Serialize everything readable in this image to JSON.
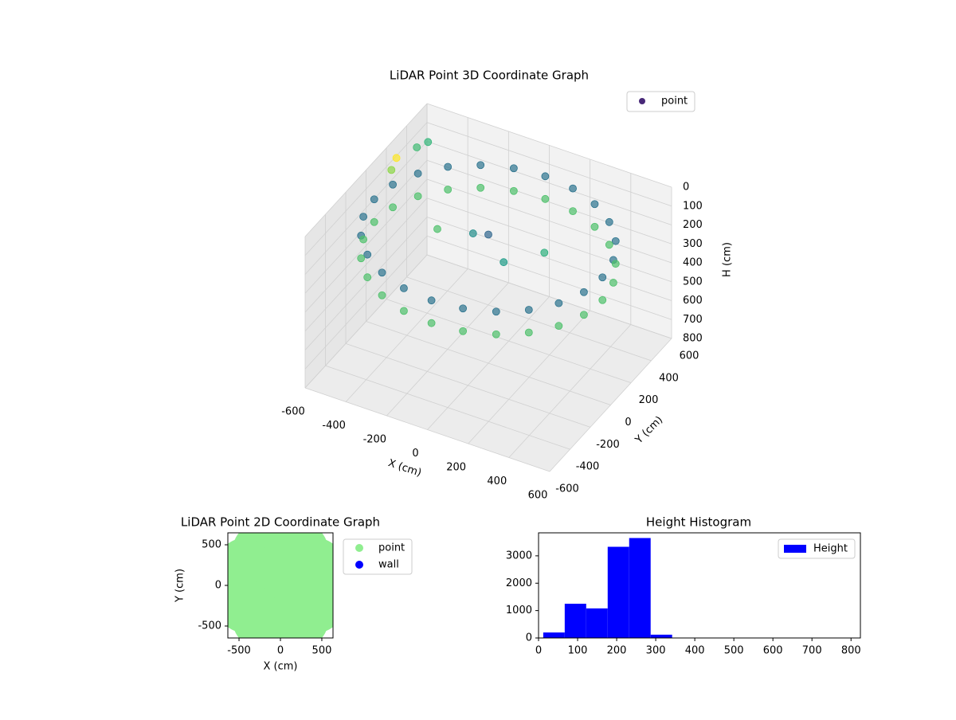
{
  "chart_data": [
    {
      "type": "scatter3d",
      "title": "LiDAR Point 3D Coordinate Graph",
      "xlabel": "X (cm)",
      "ylabel": "Y (cm)",
      "zlabel": "H (cm)",
      "xlim": [
        -600,
        600
      ],
      "ylim": [
        -600,
        600
      ],
      "zlim": [
        0,
        800
      ],
      "zinverted": true,
      "xticks": [
        -600,
        -400,
        -200,
        0,
        200,
        400,
        600
      ],
      "yticks": [
        -600,
        -400,
        -200,
        0,
        200,
        400,
        600
      ],
      "zticks": [
        0,
        100,
        200,
        300,
        400,
        500,
        600,
        700,
        800
      ],
      "colormap": "viridis",
      "legend": "upper right",
      "grid": true,
      "series": [
        {
          "name": "point",
          "color": "#482878",
          "x": [
            560,
            541,
            485,
            396,
            280,
            145,
            0,
            -145,
            -280,
            -396,
            -485,
            -541,
            -560,
            -541,
            -485,
            -396,
            -280,
            -145,
            0,
            145,
            280,
            396,
            485,
            541,
            560,
            541,
            485,
            396,
            280,
            145,
            0,
            -145,
            -280,
            -396,
            -485,
            -541,
            -560,
            -541,
            -485,
            -396,
            -280,
            -145,
            0,
            145,
            280,
            396,
            485,
            541,
            -100,
            0,
            100,
            -300,
            200,
            -650,
            -620,
            -700,
            -800
          ],
          "y": [
            0,
            145,
            280,
            396,
            485,
            541,
            560,
            541,
            485,
            396,
            280,
            145,
            0,
            -145,
            -280,
            -396,
            -485,
            -541,
            -560,
            -541,
            -485,
            -396,
            -280,
            -145,
            0,
            145,
            280,
            396,
            485,
            541,
            560,
            541,
            485,
            396,
            280,
            145,
            0,
            -145,
            -280,
            -396,
            -485,
            -541,
            -560,
            -541,
            -485,
            -396,
            -280,
            -145,
            50,
            0,
            -50,
            100,
            150,
            600,
            650,
            450,
            700
          ],
          "z": [
            140,
            140,
            140,
            140,
            140,
            140,
            140,
            140,
            140,
            140,
            140,
            140,
            140,
            140,
            140,
            140,
            140,
            140,
            140,
            140,
            140,
            140,
            140,
            140,
            260,
            260,
            260,
            260,
            260,
            260,
            260,
            260,
            260,
            260,
            260,
            260,
            260,
            260,
            260,
            260,
            260,
            260,
            260,
            260,
            260,
            260,
            260,
            260,
            180,
            120,
            200,
            260,
            230,
            250,
            240,
            300,
            420
          ]
        }
      ]
    },
    {
      "type": "scatter",
      "title": "LiDAR Point 2D Coordinate Graph",
      "xlabel": "X (cm)",
      "ylabel": "Y (cm)",
      "xlim": [
        -635,
        635
      ],
      "ylim": [
        -647,
        647
      ],
      "xticks": [
        -500,
        0,
        500
      ],
      "yticks": [
        -500,
        0,
        500
      ],
      "legend": "outside upper right",
      "series": [
        {
          "name": "point",
          "color": "#90ee90",
          "x": [
            0,
            250,
            125,
            -125,
            -250,
            -125,
            125,
            500,
            433,
            250,
            0,
            -250,
            -433,
            -500,
            -433,
            -250,
            0,
            250,
            433
          ],
          "y": [
            0,
            0,
            217,
            217,
            0,
            -217,
            -217,
            0,
            250,
            433,
            500,
            433,
            250,
            0,
            -250,
            -433,
            -500,
            -433,
            -250
          ]
        },
        {
          "name": "wall",
          "color": "#0000ff",
          "x": [],
          "y": []
        }
      ]
    },
    {
      "type": "histogram",
      "title": "Height Histogram",
      "bins": [
        12,
        67,
        122,
        177,
        232,
        287,
        342,
        397,
        452,
        507,
        562,
        617,
        672,
        727,
        782
      ],
      "values": [
        200,
        1250,
        1080,
        3330,
        3650,
        120,
        10,
        10,
        10,
        10,
        10,
        10,
        10,
        10
      ],
      "series_name": "Height",
      "color": "#0000ff",
      "xlim": [
        0,
        824
      ],
      "ylim": [
        0,
        3840
      ],
      "xticks": [
        0,
        100,
        200,
        300,
        400,
        500,
        600,
        700,
        800
      ],
      "yticks": [
        0,
        1000,
        2000,
        3000
      ],
      "legend": "upper right"
    }
  ]
}
